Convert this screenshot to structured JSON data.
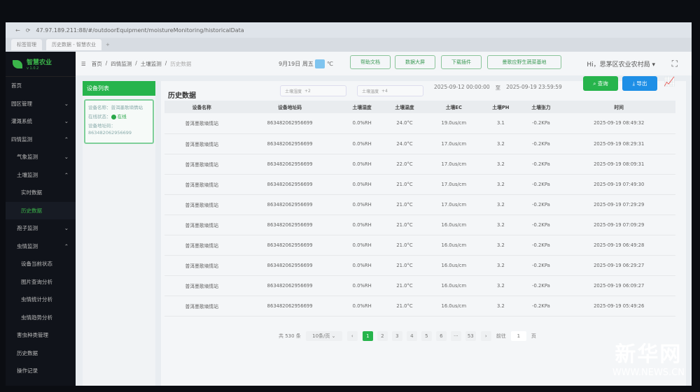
{
  "browser": {
    "url": "47.97.189.211:88/#/outdoorEquipment/moistureMonitoring/historicalData",
    "tabs": [
      "标签管理",
      "历史数据 - 智慧农业"
    ],
    "new_tab": "+"
  },
  "sidebar": {
    "logo_title": "智慧农业",
    "logo_version": "v 1.0.2",
    "items": [
      {
        "label": "首页",
        "level": 0,
        "arrow": ""
      },
      {
        "label": "园区管理",
        "level": 0,
        "arrow": "⌄"
      },
      {
        "label": "灌溉系统",
        "level": 0,
        "arrow": "⌄"
      },
      {
        "label": "四情监测",
        "level": 0,
        "arrow": "⌃"
      },
      {
        "label": "气象监测",
        "level": 1,
        "arrow": "⌄"
      },
      {
        "label": "土壤监测",
        "level": 1,
        "arrow": "⌃"
      },
      {
        "label": "实时数据",
        "level": 2,
        "arrow": ""
      },
      {
        "label": "历史数据",
        "level": 2,
        "arrow": "",
        "active": true
      },
      {
        "label": "孢子监测",
        "level": 1,
        "arrow": "⌄"
      },
      {
        "label": "虫情监测",
        "level": 1,
        "arrow": "⌃"
      },
      {
        "label": "设备当前状态",
        "level": 2,
        "arrow": ""
      },
      {
        "label": "图片查询分析",
        "level": 2,
        "arrow": ""
      },
      {
        "label": "虫情统计分析",
        "level": 2,
        "arrow": ""
      },
      {
        "label": "虫情趋势分析",
        "level": 2,
        "arrow": ""
      },
      {
        "label": "害虫种类管理",
        "level": 1,
        "arrow": ""
      },
      {
        "label": "历史数据",
        "level": 1,
        "arrow": ""
      },
      {
        "label": "操作记录",
        "level": 1,
        "arrow": ""
      }
    ]
  },
  "header": {
    "breadcrumb": [
      "首页",
      "四情监测",
      "土壤监测",
      "历史数据"
    ],
    "date": "9月19日",
    "weekday": "周五",
    "temp_unit": "℃",
    "help": "帮助文档",
    "bigscreen": "数据大屏",
    "download": "下载插件",
    "base": "曼歌应野生蔬菜基地",
    "user": "Hi，思茅区农业农村局 ▾"
  },
  "device_panel": {
    "title": "设备列表",
    "name": "设备名称：普洱墨歌墒情站",
    "status_label": "在线状态：",
    "status": "在线",
    "addr_label": "设备地址码：",
    "addr": "863482062956699"
  },
  "main": {
    "title": "历史数据",
    "filter1": "土壤湿度",
    "filter1_more": "+2",
    "filter2": "土壤温度",
    "filter2_more": "+4",
    "start": "2025-09-12 00:00:00",
    "to": "至",
    "end": "2025-09-19 23:59:59",
    "query": "⌕ 查询",
    "export": "⤓ 导出",
    "columns": [
      "设备名称",
      "设备地址码",
      "土壤湿度",
      "土壤温度",
      "土壤EC",
      "土壤PH",
      "土壤张力",
      "时间"
    ],
    "rows": [
      [
        "普洱墨歌墒情站",
        "863482062956699",
        "0.0%RH",
        "24.0°C",
        "19.0us/cm",
        "3.1",
        "-0.2KPa",
        "2025-09-19 08:49:32"
      ],
      [
        "普洱墨歌墒情站",
        "863482062956699",
        "0.0%RH",
        "24.0°C",
        "17.0us/cm",
        "3.2",
        "-0.2KPa",
        "2025-09-19 08:29:31"
      ],
      [
        "普洱墨歌墒情站",
        "863482062956699",
        "0.0%RH",
        "22.0°C",
        "17.0us/cm",
        "3.2",
        "-0.2KPa",
        "2025-09-19 08:09:31"
      ],
      [
        "普洱墨歌墒情站",
        "863482062956699",
        "0.0%RH",
        "21.0°C",
        "17.0us/cm",
        "3.2",
        "-0.2KPa",
        "2025-09-19 07:49:30"
      ],
      [
        "普洱墨歌墒情站",
        "863482062956699",
        "0.0%RH",
        "21.0°C",
        "17.0us/cm",
        "3.2",
        "-0.2KPa",
        "2025-09-19 07:29:29"
      ],
      [
        "普洱墨歌墒情站",
        "863482062956699",
        "0.0%RH",
        "21.0°C",
        "16.0us/cm",
        "3.2",
        "-0.2KPa",
        "2025-09-19 07:09:29"
      ],
      [
        "普洱墨歌墒情站",
        "863482062956699",
        "0.0%RH",
        "21.0°C",
        "16.0us/cm",
        "3.2",
        "-0.2KPa",
        "2025-09-19 06:49:28"
      ],
      [
        "普洱墨歌墒情站",
        "863482062956699",
        "0.0%RH",
        "21.0°C",
        "16.0us/cm",
        "3.2",
        "-0.2KPa",
        "2025-09-19 06:29:27"
      ],
      [
        "普洱墨歌墒情站",
        "863482062956699",
        "0.0%RH",
        "21.0°C",
        "16.0us/cm",
        "3.2",
        "-0.2KPa",
        "2025-09-19 06:09:27"
      ],
      [
        "普洱墨歌墒情站",
        "863482062956699",
        "0.0%RH",
        "21.0°C",
        "16.0us/cm",
        "3.2",
        "-0.2KPa",
        "2025-09-19 05:49:26"
      ]
    ]
  },
  "pager": {
    "total": "共 530 条",
    "size": "10条/页 ⌄",
    "prev": "‹",
    "pages": [
      "1",
      "2",
      "3",
      "4",
      "5",
      "6",
      "···",
      "53"
    ],
    "current": "1",
    "next": "›",
    "goto": "前往",
    "goto_value": "1",
    "page_unit": "页"
  },
  "watermark": {
    "logo": "新华网",
    "site": "WWW.NEWS.CN"
  },
  "colors": {
    "accent": "#27b44c",
    "export": "#1e8fe6",
    "sidebar": "#10131a"
  }
}
